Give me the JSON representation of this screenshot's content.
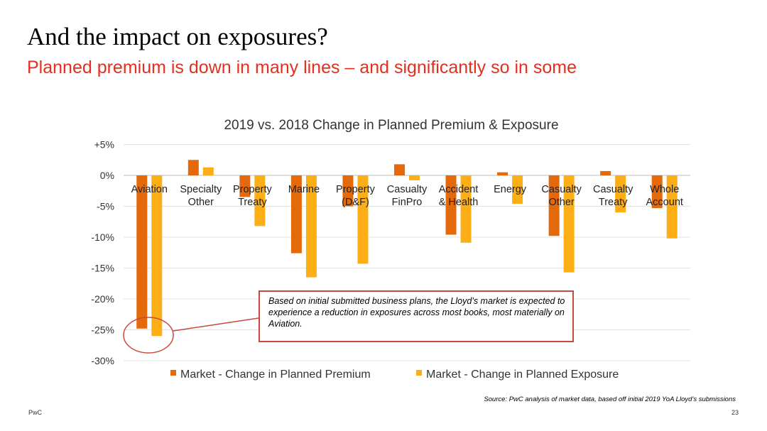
{
  "slide": {
    "title": "And the impact on exposures?",
    "subtitle": "Planned premium is down in many lines – and significantly so in some",
    "source": "Source: PwC analysis of market data, based off initial 2019 YoA Lloyd’s submissions",
    "brand": "PwC",
    "page_number": "23"
  },
  "callout": {
    "text": "Based on initial submitted business plans, the Lloyd’s market is expected to experience a reduction in exposures across most books, most materially on Aviation."
  },
  "colors": {
    "premium": "#e3690a",
    "exposure": "#fcae17",
    "callout_border": "#c9483b",
    "subtitle": "#e0301e"
  },
  "chart_data": {
    "type": "bar",
    "title": "2019 vs. 2018 Change in Planned Premium & Exposure",
    "categories": [
      [
        "Aviation"
      ],
      [
        "Specialty",
        "Other"
      ],
      [
        "Property",
        "Treaty"
      ],
      [
        "Marine"
      ],
      [
        "Property",
        "(D&F)"
      ],
      [
        "Casualty",
        "FinPro"
      ],
      [
        "Accident",
        "& Health"
      ],
      [
        "Energy"
      ],
      [
        "Casualty",
        "Other"
      ],
      [
        "Casualty",
        "Treaty"
      ],
      [
        "Whole",
        "Account"
      ]
    ],
    "series": [
      {
        "name": "Market - Change in Planned Premium",
        "values": [
          -24.8,
          2.5,
          -3.5,
          -12.6,
          -5.0,
          1.8,
          -9.6,
          0.5,
          -9.8,
          0.7,
          -5.3
        ]
      },
      {
        "name": "Market - Change in Planned Exposure",
        "values": [
          -26.0,
          1.3,
          -8.2,
          -16.5,
          -14.3,
          -0.8,
          -10.9,
          -4.6,
          -15.7,
          -6.0,
          -10.2
        ]
      }
    ],
    "yticks": [
      "+5%",
      "0%",
      "-5%",
      "-10%",
      "-15%",
      "-20%",
      "-25%",
      "-30%"
    ],
    "ylim": [
      -30,
      5
    ],
    "grid": true,
    "legend": "bottom"
  }
}
